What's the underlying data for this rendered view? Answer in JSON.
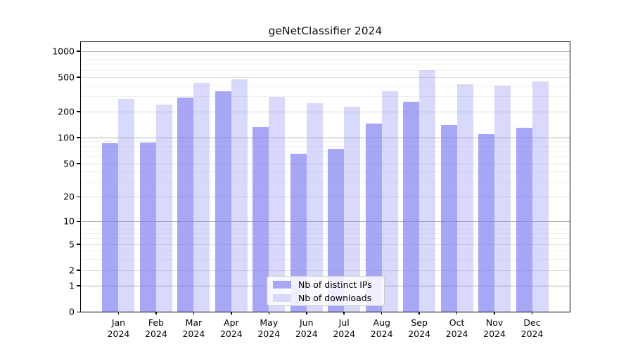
{
  "chart_data": {
    "type": "bar",
    "title": "geNetClassifier 2024",
    "categories": [
      "Jan 2024",
      "Feb 2024",
      "Mar 2024",
      "Apr 2024",
      "May 2024",
      "Jun 2024",
      "Jul 2024",
      "Aug 2024",
      "Sep 2024",
      "Oct 2024",
      "Nov 2024",
      "Dec 2024"
    ],
    "series": [
      {
        "name": "Nb of distinct IPs",
        "color": "#7c7cf0",
        "alpha": 0.67,
        "values": [
          85,
          87,
          289,
          342,
          133,
          65,
          74,
          146,
          258,
          141,
          109,
          130
        ]
      },
      {
        "name": "Nb of downloads",
        "color": "#7c7cf0",
        "alpha": 0.29,
        "values": [
          280,
          242,
          427,
          468,
          294,
          251,
          229,
          343,
          600,
          413,
          401,
          445
        ]
      }
    ],
    "yscale": "log1p",
    "y_ticks": [
      0,
      1,
      2,
      5,
      10,
      20,
      50,
      100,
      200,
      500,
      1000
    ],
    "ylim": [
      0,
      1250
    ],
    "xlabel": "",
    "ylabel": "",
    "grid": "horizontal",
    "legend_position": "bottom-center",
    "colors": {
      "grid_pow10": "#b4b4b4",
      "grid_major": "#dddddd",
      "grid_minor": "#f1f1f1",
      "axis": "#000000",
      "background": "#ffffff"
    }
  }
}
